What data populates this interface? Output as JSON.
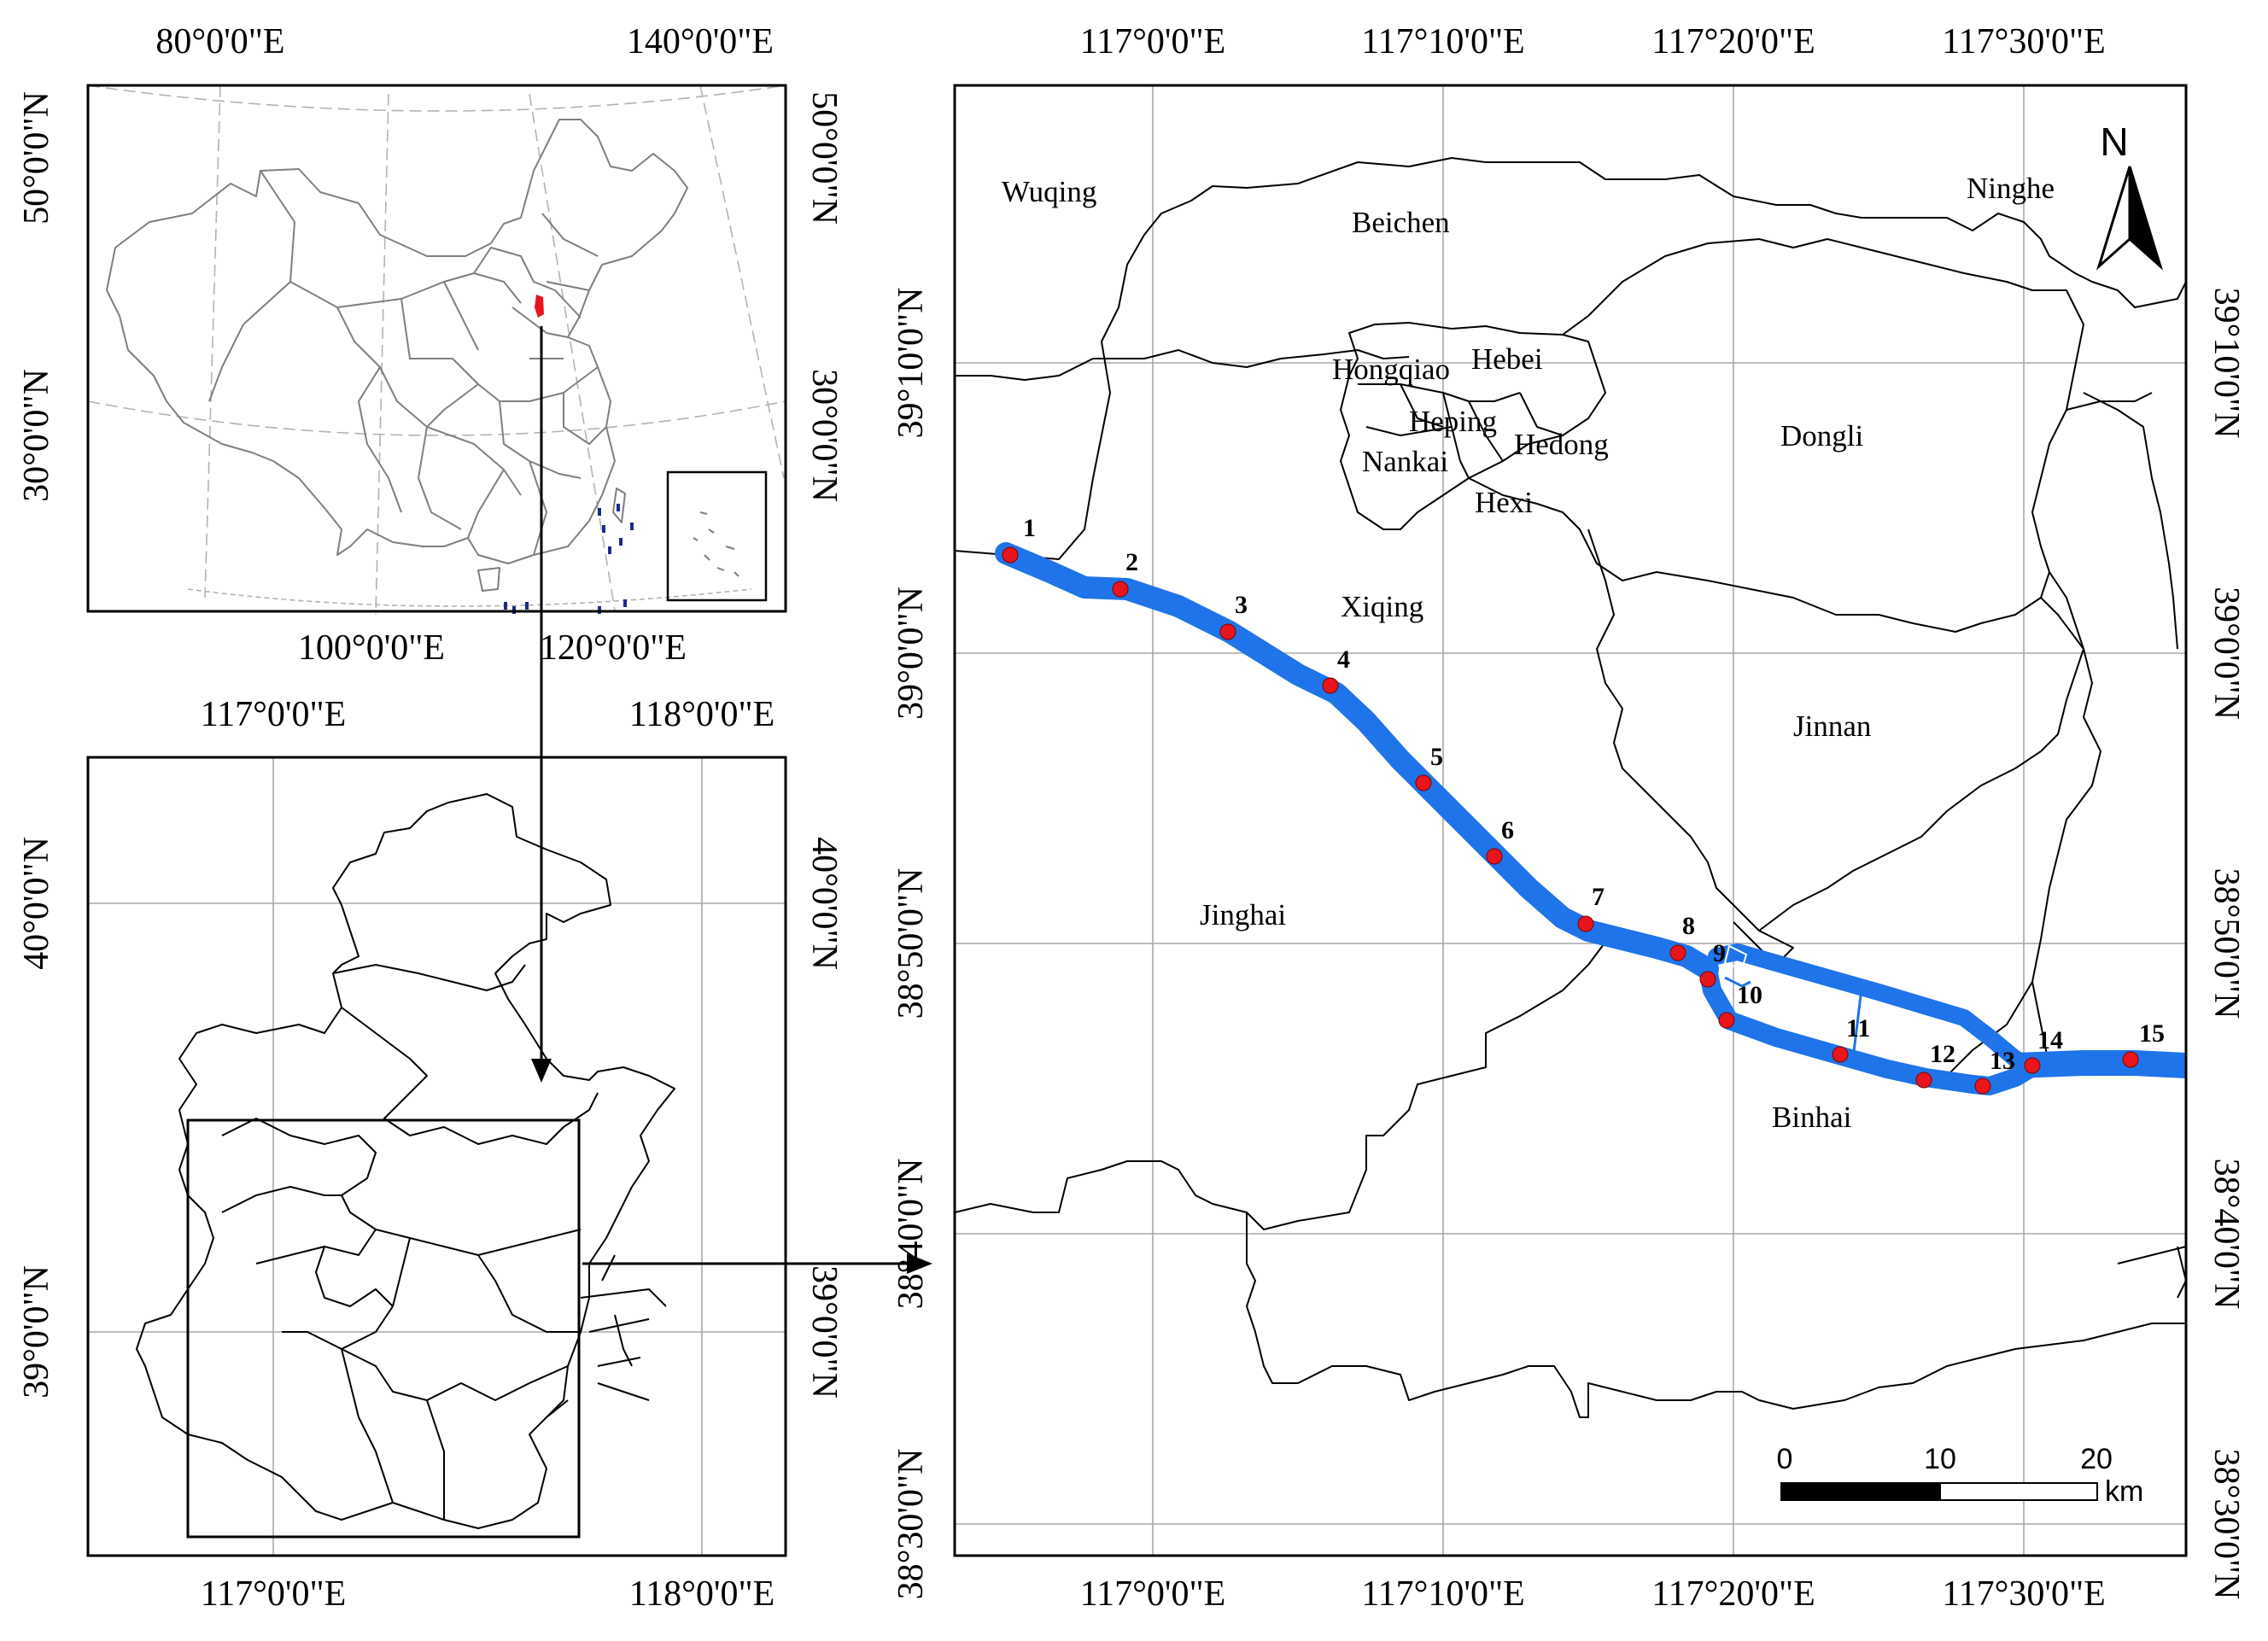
{
  "colors": {
    "route": "#1f74e9",
    "station": "#e8151b",
    "beijing": "#e8151b",
    "islands": "#1b2a8a",
    "graticule": "#a9a9a9"
  },
  "panel_china": {
    "top_labels": [
      "80°0'0\"E",
      "140°0'0\"E"
    ],
    "bottom_labels": [
      "100°0'0\"E",
      "120°0'0\"E"
    ],
    "left_labels": [
      "50°0'0\"N",
      "30°0'0\"N"
    ],
    "right_labels": [
      "50°0'0\"N",
      "30°0'0\"N"
    ]
  },
  "panel_tianjin": {
    "top_labels": [
      "117°0'0\"E",
      "118°0'0\"E"
    ],
    "bottom_labels": [
      "117°0'0\"E",
      "118°0'0\"E"
    ],
    "left_labels": [
      "40°0'0\"N",
      "39°0'0\"N"
    ],
    "right_labels": [
      "40°0'0\"N",
      "39°0'0\"N"
    ]
  },
  "panel_main": {
    "top_labels": [
      "117°0'0\"E",
      "117°10'0\"E",
      "117°20'0\"E",
      "117°30'0\"E"
    ],
    "bottom_labels": [
      "117°0'0\"E",
      "117°10'0\"E",
      "117°20'0\"E",
      "117°30'0\"E"
    ],
    "left_labels": [
      "39°10'0\"N",
      "39°0'0\"N",
      "38°50'0\"N",
      "38°40'0\"N",
      "38°30'0\"N"
    ],
    "right_labels": [
      "39°10'0\"N",
      "39°0'0\"N",
      "38°50'0\"N",
      "38°40'0\"N",
      "38°30'0\"N"
    ],
    "districts": [
      "Wuqing",
      "Beichen",
      "Ninghe",
      "Hongqiao",
      "Hebei",
      "Heping",
      "Hedong",
      "Nankai",
      "Hexi",
      "Dongli",
      "Xiqing",
      "Jinnan",
      "Jinghai",
      "Binhai"
    ],
    "stations": [
      "1",
      "2",
      "3",
      "4",
      "5",
      "6",
      "7",
      "8",
      "9",
      "10",
      "11",
      "12",
      "13",
      "14",
      "15"
    ],
    "north_arrow": "N",
    "scale_bar": {
      "ticks": [
        "0",
        "10",
        "20"
      ],
      "unit": "km"
    }
  }
}
